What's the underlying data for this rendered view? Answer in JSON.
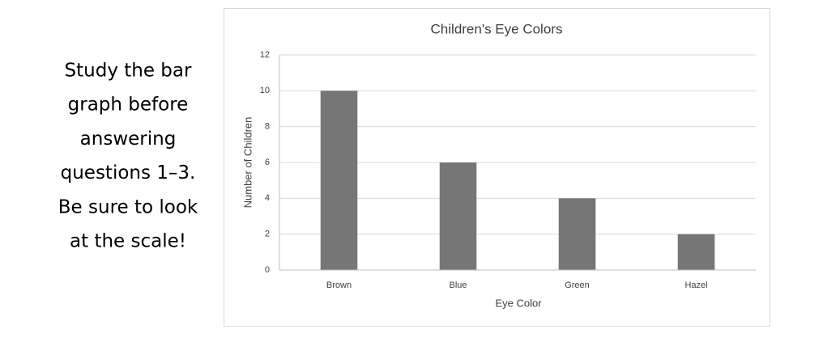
{
  "instructions": [
    "Study the bar",
    "graph before",
    "answering",
    "questions 1–3.",
    "Be sure to look",
    "at the scale!"
  ],
  "chart_data": {
    "type": "bar",
    "title": "Children's Eye Colors",
    "x_label": "Eye Color",
    "y_label": "Number of Children",
    "categories": [
      "Brown",
      "Blue",
      "Green",
      "Hazel"
    ],
    "values": [
      10,
      6,
      4,
      2
    ],
    "color": "#767676",
    "ylim": [
      0,
      12
    ],
    "yticks": [
      0,
      2,
      4,
      6,
      8,
      10,
      12
    ],
    "grid": true
  }
}
